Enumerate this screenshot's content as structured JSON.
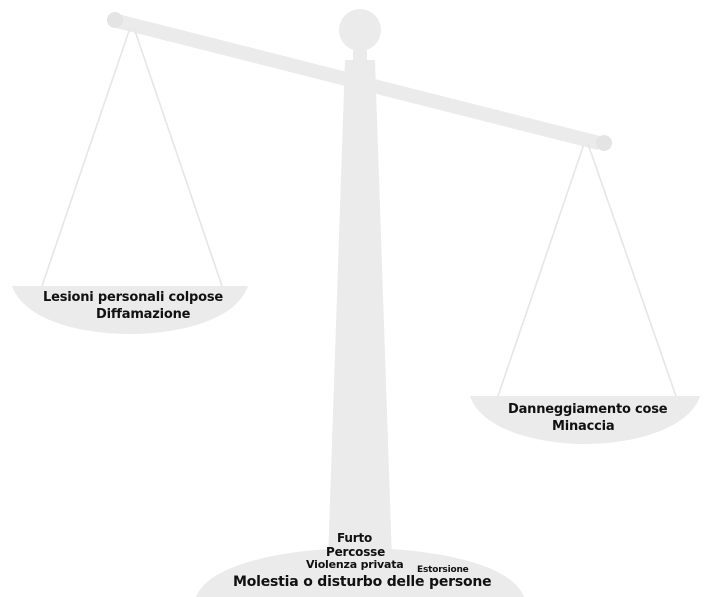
{
  "colors": {
    "scale_fill": "#ebebeb",
    "scale_line": "#e6e6e6",
    "text": "#111111"
  },
  "left_pan": {
    "items": [
      "Lesioni personali colpose",
      "Diffamazione"
    ]
  },
  "right_pan": {
    "items": [
      "Danneggiamento cose",
      "Minaccia"
    ]
  },
  "base": {
    "items": [
      "Furto",
      "Percosse",
      "Violenza privata",
      "Estorsione",
      "Molestia o disturbo delle persone"
    ]
  }
}
